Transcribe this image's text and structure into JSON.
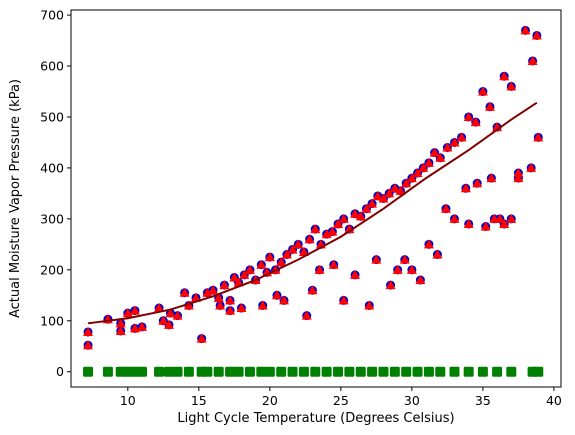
{
  "chart_data": {
    "type": "scatter",
    "title": "",
    "xlabel": "Light Cycle Temperature (Degrees Celsius)",
    "ylabel": "Actual Moisture Vapor Pressure (kPa)",
    "xlim": [
      6,
      40.5
    ],
    "ylim": [
      -30,
      710
    ],
    "xticks": [
      10,
      15,
      20,
      25,
      30,
      35,
      40
    ],
    "yticks": [
      0,
      100,
      200,
      300,
      400,
      500,
      600,
      700
    ],
    "grid": false,
    "legend": "none",
    "colors": {
      "actual": "#0000cc",
      "predicted": "#ff0000",
      "residual_band": "#008000",
      "trend": "#800000"
    },
    "series": [
      {
        "marker": "circle",
        "color": "#0000cc",
        "x": [
          7.2,
          7.2,
          8.6,
          9.5,
          9.5,
          10.0,
          10.5,
          10.5,
          11.0,
          12.2,
          12.5,
          12.9,
          13.0,
          13.5,
          14.0,
          14.3,
          14.8,
          15.2,
          15.6,
          16.0,
          16.4,
          16.8,
          17.2,
          17.5,
          17.8,
          18.2,
          18.6,
          19.0,
          19.4,
          19.8,
          20.0,
          20.4,
          20.8,
          21.2,
          21.6,
          22.0,
          22.4,
          22.8,
          23.2,
          23.6,
          24.0,
          24.4,
          24.8,
          25.2,
          25.6,
          26.0,
          26.4,
          26.8,
          27.2,
          27.6,
          28.0,
          28.4,
          28.8,
          29.2,
          29.6,
          30.0,
          30.4,
          30.8,
          31.2,
          31.6,
          32.0,
          32.5,
          33.0,
          33.5,
          34.0,
          34.5,
          35.0,
          35.5,
          36.0,
          36.5,
          37.0,
          37.5,
          38.0,
          38.5,
          38.8,
          16.5,
          17.2,
          20.5,
          22.6,
          23.0,
          25.2,
          27.0,
          29.0,
          30.6,
          31.2,
          31.8,
          32.4,
          33.0,
          34.0,
          35.2,
          35.6,
          36.2,
          37.0,
          37.5,
          38.9,
          23.5,
          24.5,
          26.0,
          28.5,
          30.0,
          21.0,
          19.5,
          18.0,
          27.5,
          29.5,
          33.8,
          34.6,
          35.8,
          36.5,
          38.4
        ],
        "y": [
          52,
          78,
          103,
          80,
          95,
          115,
          85,
          120,
          88,
          125,
          100,
          92,
          115,
          110,
          155,
          130,
          145,
          65,
          155,
          160,
          145,
          170,
          140,
          185,
          175,
          190,
          200,
          180,
          210,
          195,
          225,
          200,
          215,
          230,
          240,
          250,
          235,
          260,
          280,
          250,
          270,
          275,
          290,
          300,
          280,
          310,
          305,
          320,
          330,
          345,
          340,
          350,
          360,
          355,
          370,
          380,
          390,
          400,
          410,
          430,
          420,
          440,
          450,
          460,
          500,
          490,
          550,
          520,
          480,
          580,
          560,
          390,
          670,
          610,
          660,
          130,
          120,
          150,
          110,
          160,
          140,
          130,
          200,
          180,
          250,
          230,
          320,
          300,
          290,
          285,
          380,
          300,
          300,
          380,
          460,
          200,
          210,
          190,
          170,
          200,
          140,
          130,
          125,
          220,
          220,
          360,
          370,
          300,
          290,
          400
        ],
        "note": ""
      },
      {
        "marker": "triangle",
        "color": "#ff0000",
        "x": [
          7.2,
          7.2,
          8.6,
          9.5,
          9.5,
          10.0,
          10.5,
          10.5,
          11.0,
          12.2,
          12.5,
          12.9,
          13.0,
          13.5,
          14.0,
          14.3,
          14.8,
          15.2,
          15.6,
          16.0,
          16.4,
          16.8,
          17.2,
          17.5,
          17.8,
          18.2,
          18.6,
          19.0,
          19.4,
          19.8,
          20.0,
          20.4,
          20.8,
          21.2,
          21.6,
          22.0,
          22.4,
          22.8,
          23.2,
          23.6,
          24.0,
          24.4,
          24.8,
          25.2,
          25.6,
          26.0,
          26.4,
          26.8,
          27.2,
          27.6,
          28.0,
          28.4,
          28.8,
          29.2,
          29.6,
          30.0,
          30.4,
          30.8,
          31.2,
          31.6,
          32.0,
          32.5,
          33.0,
          33.5,
          34.0,
          34.5,
          35.0,
          35.5,
          36.0,
          36.5,
          37.0,
          37.5,
          38.0,
          38.5,
          38.8,
          16.5,
          17.2,
          20.5,
          22.6,
          23.0,
          25.2,
          27.0,
          29.0,
          30.6,
          31.2,
          31.8,
          32.4,
          33.0,
          34.0,
          35.2,
          35.6,
          36.2,
          37.0,
          37.5,
          38.9,
          23.5,
          24.5,
          26.0,
          28.5,
          30.0,
          21.0,
          19.5,
          18.0,
          27.5,
          29.5,
          33.8,
          34.6,
          35.8,
          36.5,
          38.4
        ],
        "y": [
          52,
          78,
          103,
          80,
          95,
          115,
          85,
          120,
          88,
          125,
          100,
          92,
          115,
          110,
          155,
          130,
          145,
          65,
          155,
          160,
          145,
          170,
          140,
          185,
          175,
          190,
          200,
          180,
          210,
          195,
          225,
          200,
          215,
          230,
          240,
          250,
          235,
          260,
          280,
          250,
          270,
          275,
          290,
          300,
          280,
          310,
          305,
          320,
          330,
          345,
          340,
          350,
          360,
          355,
          370,
          380,
          390,
          400,
          410,
          430,
          420,
          440,
          450,
          460,
          500,
          490,
          550,
          520,
          480,
          580,
          560,
          390,
          670,
          610,
          660,
          130,
          120,
          150,
          110,
          160,
          140,
          130,
          200,
          180,
          250,
          230,
          320,
          300,
          290,
          285,
          380,
          300,
          300,
          380,
          460,
          200,
          210,
          190,
          170,
          200,
          140,
          130,
          125,
          220,
          220,
          360,
          370,
          300,
          290,
          400
        ]
      },
      {
        "marker": "square",
        "color": "#008000",
        "x": [
          7.2,
          8.6,
          9.5,
          10.0,
          10.5,
          11.0,
          12.2,
          12.9,
          13.5,
          14.3,
          15.2,
          15.6,
          16.4,
          17.2,
          17.8,
          18.6,
          19.4,
          20.0,
          20.8,
          21.6,
          22.4,
          23.2,
          24.0,
          24.8,
          25.6,
          26.4,
          27.2,
          28.0,
          28.8,
          29.6,
          30.4,
          31.2,
          32.0,
          33.0,
          34.0,
          35.0,
          36.0,
          37.0,
          38.5,
          38.9
        ],
        "y": [
          0,
          0,
          0,
          0,
          0,
          0,
          0,
          0,
          0,
          0,
          0,
          0,
          0,
          0,
          0,
          0,
          0,
          0,
          0,
          0,
          0,
          0,
          0,
          0,
          0,
          0,
          0,
          0,
          0,
          0,
          0,
          0,
          0,
          0,
          0,
          0,
          0,
          0,
          0,
          0
        ]
      },
      {
        "marker": "line",
        "color": "#800000",
        "x": [
          7.2,
          10,
          13,
          16,
          19,
          22,
          25,
          28,
          31,
          34,
          37,
          38.8
        ],
        "y": [
          95,
          105,
          122,
          148,
          180,
          220,
          265,
          320,
          380,
          435,
          495,
          528
        ]
      }
    ]
  }
}
